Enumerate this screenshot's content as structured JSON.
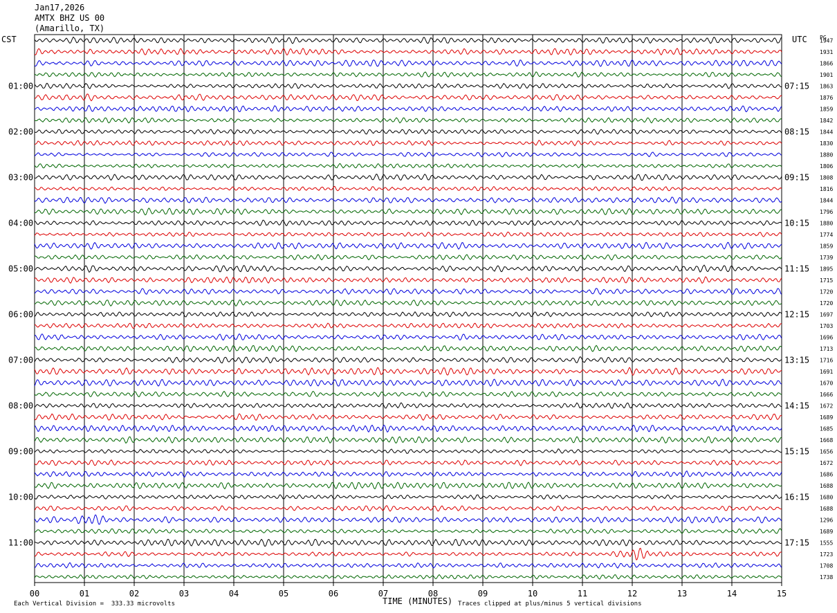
{
  "header": {
    "date": "Jan17,2026",
    "station": "AMTX BHZ US 00",
    "location": "(Amarillo, TX)"
  },
  "left_tz": "CST",
  "right_tz": "UTC",
  "right_counter_label": "PG",
  "footer": {
    "left_note": "Each Vertical Division =  333.33 microvolts",
    "right_note": "Traces clipped at plus/minus 5 vertical divisions",
    "xlabel": "TIME (MINUTES)"
  },
  "chart_data": {
    "type": "line",
    "title": "",
    "xlabel": "TIME (MINUTES)",
    "xlim": [
      0,
      15
    ],
    "x_ticks": [
      "00",
      "01",
      "02",
      "03",
      "04",
      "05",
      "06",
      "07",
      "08",
      "09",
      "10",
      "11",
      "12",
      "13",
      "14",
      "15"
    ],
    "rows": 48,
    "row_minutes": 15,
    "trace_colors": [
      "#000000",
      "#dd0000",
      "#0000dd",
      "#006600"
    ],
    "left_hour_labels": [
      "01:00",
      "02:00",
      "03:00",
      "04:00",
      "05:00",
      "06:00",
      "07:00",
      "08:00",
      "09:00",
      "10:00",
      "11:00"
    ],
    "right_hour_labels": [
      "07:15",
      "08:15",
      "09:15",
      "10:15",
      "11:15",
      "12:15",
      "13:15",
      "14:15",
      "15:15",
      "16:15",
      "17:15"
    ],
    "row_counts": [
      "1947",
      "1931",
      "1866",
      "1901",
      "1863",
      "1876",
      "1859",
      "1842",
      "1844",
      "1830",
      "1880",
      "1806",
      "1808",
      "1816",
      "1844",
      "1796",
      "1880",
      "1774",
      "1859",
      "1739",
      "1895",
      "1715",
      "1720",
      "1720",
      "1697",
      "1703",
      "1696",
      "1713",
      "1716",
      "1691",
      "1670",
      "1666",
      "1672",
      "1689",
      "1685",
      "1668",
      "1656",
      "1672",
      "1686",
      "1688",
      "1680",
      "1688",
      "1296",
      "1689",
      "1555",
      "1723",
      "1708",
      "1738"
    ],
    "events": [
      {
        "row": 42,
        "minute": 1.1,
        "note": "burst"
      },
      {
        "row": 45,
        "minute": 12.1,
        "note": "burst"
      }
    ]
  }
}
